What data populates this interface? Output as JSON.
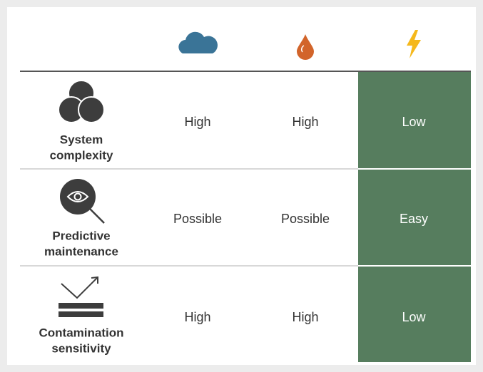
{
  "table": {
    "rows": [
      {
        "label": [
          "System",
          "complexity"
        ],
        "cells": [
          "High",
          "High",
          "Low"
        ]
      },
      {
        "label": [
          "Predictive",
          "maintenance"
        ],
        "cells": [
          "Possible",
          "Possible",
          "Easy"
        ]
      },
      {
        "label": [
          "Contamination",
          "sensitivity"
        ],
        "cells": [
          "High",
          "High",
          "Low"
        ]
      }
    ]
  }
}
